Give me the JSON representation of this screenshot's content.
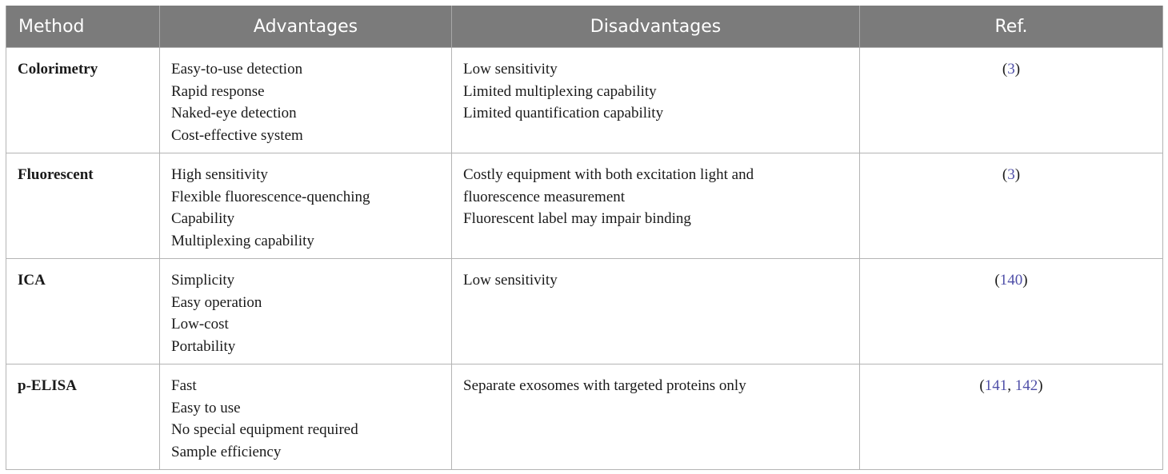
{
  "table": {
    "headers": [
      "Method",
      "Advantages",
      "Disadvantages",
      "Ref."
    ],
    "rows": [
      {
        "method": "Colorimetry",
        "advantages": [
          "Easy-to-use detection",
          "Rapid response",
          "Naked-eye detection",
          "Cost-effective system"
        ],
        "disadvantages": [
          "Low sensitivity",
          "Limited multiplexing capability",
          "Limited quantification capability"
        ],
        "ref_open": "(",
        "refs": [
          "3"
        ],
        "ref_close": ")"
      },
      {
        "method": "Fluorescent",
        "advantages": [
          "High sensitivity",
          "Flexible fluorescence-quenching",
          "Capability",
          "Multiplexing capability"
        ],
        "disadvantages": [
          "Costly equipment with both excitation light and",
          "fluorescence measurement",
          "Fluorescent label may impair binding"
        ],
        "ref_open": "(",
        "refs": [
          "3"
        ],
        "ref_close": ")"
      },
      {
        "method": "ICA",
        "advantages": [
          "Simplicity",
          "Easy operation",
          "Low-cost",
          "Portability"
        ],
        "disadvantages": [
          "Low sensitivity"
        ],
        "ref_open": "(",
        "refs": [
          "140"
        ],
        "ref_close": ")"
      },
      {
        "method": "p-ELISA",
        "advantages": [
          "Fast",
          "Easy to use",
          "No special equipment required",
          "Sample efficiency"
        ],
        "disadvantages": [
          "Separate exosomes with targeted proteins only"
        ],
        "ref_open": "(",
        "refs": [
          "141",
          "142"
        ],
        "ref_sep": ", ",
        "ref_close": ")"
      }
    ]
  },
  "colors": {
    "header_bg": "#7b7b7b",
    "header_text": "#ffffff",
    "ref_link": "#4f4fa8",
    "border": "#b4b4b4"
  }
}
